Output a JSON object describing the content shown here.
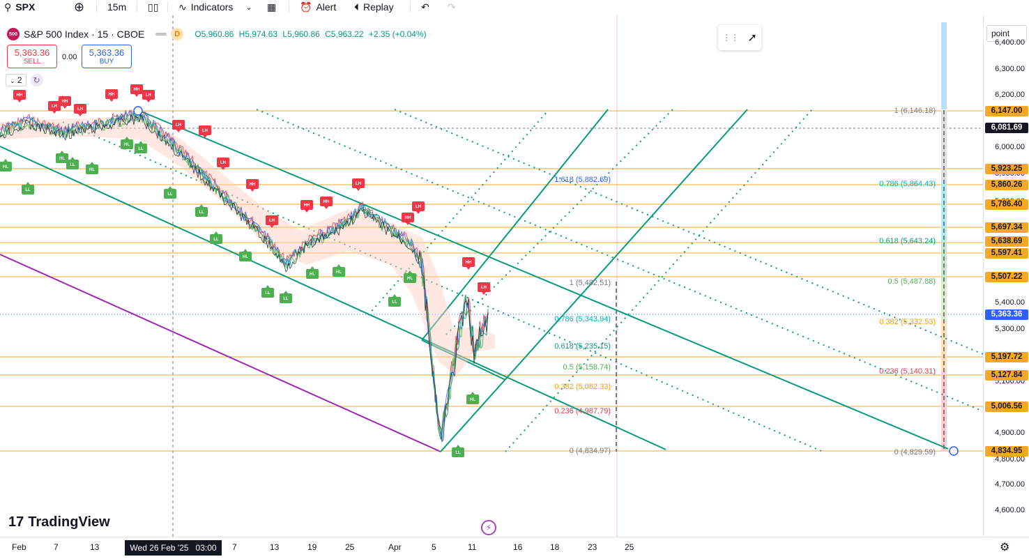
{
  "toolbar": {
    "symbol": "SPX",
    "interval": "15m",
    "indicators_label": "Indicators",
    "alert_label": "Alert",
    "replay_label": "Replay"
  },
  "legend": {
    "badge": "500",
    "title": "S&P 500 Index · 15 · CBOE",
    "d_badge": "D",
    "open": "O5,960.86",
    "high": "H5,974.63",
    "low": "L5,960.86",
    "close": "C5,963.22",
    "change": "+2.35 (+0.04%)"
  },
  "trade": {
    "sell_price": "5,363.36",
    "sell_label": "SELL",
    "spread": "0.00",
    "buy_price": "5,363.36",
    "buy_label": "BUY"
  },
  "indicator_count": "2",
  "unit_label": "point",
  "logo_text": "TradingView",
  "price_axis": {
    "ticks": [
      "6,400.00",
      "6,300.00",
      "6,200.00",
      "6,000.00",
      "5,900.00",
      "5,800.00",
      "5,400.00",
      "5,300.00",
      "5,100.00",
      "4,900.00",
      "4,800.00",
      "4,700.00",
      "4,600.00"
    ],
    "tags": [
      {
        "text": "6,147.00",
        "color": "#f9a825"
      },
      {
        "text": "6,081.69",
        "color": "#131722"
      },
      {
        "text": "5,923.25",
        "color": "#f9a825"
      },
      {
        "text": "5,860.26",
        "color": "#f9a825"
      },
      {
        "text": "5,786.40",
        "color": "#f9a825"
      },
      {
        "text": "5,697.34",
        "color": "#f9a825"
      },
      {
        "text": "5,638.69",
        "color": "#f9a825"
      },
      {
        "text": "5,597.41",
        "color": "#f9a825"
      },
      {
        "text": "5,507.22",
        "color": "#f9a825"
      },
      {
        "text": "5,363.36",
        "color": "#2962ff"
      },
      {
        "text": "5,197.72",
        "color": "#f9a825"
      },
      {
        "text": "5,127.84",
        "color": "#f9a825"
      },
      {
        "text": "5,006.56",
        "color": "#f9a825"
      },
      {
        "text": "4,834.95",
        "color": "#f9a825"
      }
    ]
  },
  "time_axis": {
    "labels": [
      "Feb",
      "7",
      "13",
      "7",
      "13",
      "19",
      "25",
      "Apr",
      "5",
      "11",
      "16",
      "18",
      "23",
      "25"
    ],
    "highlight": "Wed 26 Feb '25   03:00"
  },
  "fib_left": [
    {
      "text": "1.618 (5,882.69)",
      "color": "#2962ff"
    },
    {
      "text": "1 (5,482.51)",
      "color": "#787b86"
    },
    {
      "text": "0.786 (5,343.94)",
      "color": "#00acc1"
    },
    {
      "text": "0.618 (5,235.15)",
      "color": "#089981"
    },
    {
      "text": "0.5 (5,158.74)",
      "color": "#4caf50"
    },
    {
      "text": "0.382 (5,082.33)",
      "color": "#ff9800"
    },
    {
      "text": "0.236 (4,987.79)",
      "color": "#f23645"
    },
    {
      "text": "0 (4,834.97)",
      "color": "#787b86"
    }
  ],
  "fib_right": [
    {
      "text": "1 (6,146.18)",
      "color": "#787b86"
    },
    {
      "text": "0.786 (5,864.43)",
      "color": "#00acc1"
    },
    {
      "text": "0.618 (5,643.24)",
      "color": "#089981"
    },
    {
      "text": "0.5 (5,487.88)",
      "color": "#4caf50"
    },
    {
      "text": "0.382 (5,332.53)",
      "color": "#ff9800"
    },
    {
      "text": "0.236 (5,140.31)",
      "color": "#f23645"
    },
    {
      "text": "0 (4,829.59)",
      "color": "#787b86"
    }
  ],
  "pivot_labels": {
    "highs": [
      "HH",
      "LH",
      "HH",
      "LH",
      "HH",
      "HH",
      "LH",
      "LH",
      "LH",
      "LH",
      "HH",
      "LH",
      "HH",
      "HH",
      "LH",
      "HH",
      "LH",
      "HH",
      "LH"
    ],
    "lows": [
      "HL",
      "LL",
      "HL",
      "LL",
      "HL",
      "HL",
      "LL",
      "LL",
      "LL",
      "LL",
      "HL",
      "LL",
      "LL",
      "HL",
      "HL",
      "LL",
      "HL",
      "HL",
      "LL"
    ]
  },
  "colors": {
    "channel": "#089981",
    "fib_line": "#f9a825",
    "purple": "#9c27b0",
    "up": "#089981",
    "down": "#f23645"
  }
}
